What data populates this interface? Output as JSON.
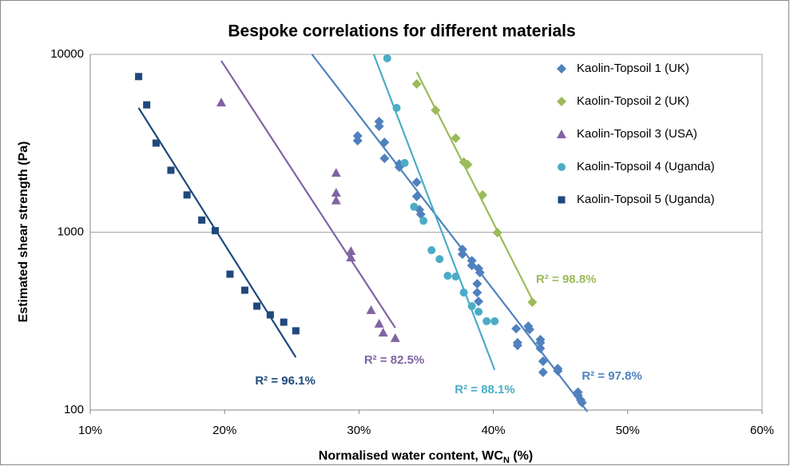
{
  "chart_data": {
    "type": "scatter",
    "title": "Bespoke correlations for different materials",
    "x_label": [
      "Normalised water content, WC",
      "N",
      " (%)"
    ],
    "y_label": "Estimated shear strength (Pa)",
    "xlim": [
      10,
      60
    ],
    "xticks": [
      {
        "value": 10,
        "label": "10%"
      },
      {
        "value": 20,
        "label": "20%"
      },
      {
        "value": 30,
        "label": "30%"
      },
      {
        "value": 40,
        "label": "40%"
      },
      {
        "value": 50,
        "label": "50%"
      },
      {
        "value": 60,
        "label": "60%"
      }
    ],
    "ylim": [
      100,
      10000
    ],
    "yticks": [
      100,
      1000,
      10000
    ],
    "y_log": true,
    "grid": true,
    "legend": "right",
    "series": [
      {
        "name": "Kaolin-Topsoil 1 (UK)",
        "color": "#4f81bd",
        "marker": "diamond",
        "annotation": "R² = 97.8%",
        "x": [
          29.9,
          29.9,
          31.5,
          31.5,
          31.9,
          31.9,
          33.0,
          33.0,
          34.3,
          34.3,
          34.5,
          34.6,
          37.7,
          37.7,
          38.4,
          38.4,
          38.9,
          39.0,
          38.8,
          38.8,
          38.9,
          41.7,
          41.8,
          41.8,
          42.6,
          42.7,
          43.5,
          43.5,
          43.5,
          43.7,
          43.7,
          44.8,
          44.8,
          46.3,
          46.3,
          46.5,
          46.6
        ],
        "values": [
          3480,
          3270,
          4190,
          3940,
          3200,
          2600,
          2420,
          2320,
          1910,
          1590,
          1340,
          1260,
          800,
          752,
          692,
          650,
          625,
          593,
          513,
          458,
          408,
          287,
          239,
          231,
          296,
          284,
          249,
          239,
          222,
          188,
          163,
          171,
          166,
          126,
          121,
          114,
          110
        ],
        "trend_x": [
          26.5,
          47.0
        ],
        "trend_y": [
          10000,
          98
        ]
      },
      {
        "name": "Kaolin-Topsoil 2 (UK)",
        "color": "#9bbb59",
        "marker": "diamond",
        "annotation": "R² = 98.8%",
        "x": [
          34.3,
          35.7,
          37.2,
          37.8,
          38.1,
          39.2,
          40.3,
          42.9
        ],
        "values": [
          6820,
          4850,
          3380,
          2480,
          2400,
          1620,
          995,
          404
        ],
        "trend_x": [
          34.3,
          43.0
        ],
        "trend_y": [
          7960,
          404
        ]
      },
      {
        "name": "Kaolin-Topsoil 3 (USA)",
        "color": "#8064a2",
        "marker": "triangle",
        "annotation": "R² = 82.5%",
        "x": [
          19.75,
          28.3,
          28.3,
          28.3,
          29.4,
          29.4,
          30.9,
          31.5,
          31.8,
          32.7
        ],
        "values": [
          5370,
          2160,
          1670,
          1510,
          784,
          722,
          365,
          306,
          273,
          254
        ],
        "trend_x": [
          19.75,
          32.7
        ],
        "trend_y": [
          9200,
          290
        ]
      },
      {
        "name": "Kaolin-Topsoil 4 (Uganda)",
        "color": "#4bacc6",
        "marker": "circle",
        "annotation": "R² = 88.1%",
        "x": [
          32.1,
          32.8,
          33.4,
          34.1,
          34.8,
          35.4,
          36.0,
          36.6,
          37.2,
          37.8,
          38.4,
          38.9,
          39.5,
          40.1
        ],
        "values": [
          9500,
          5000,
          2450,
          1390,
          1160,
          792,
          706,
          569,
          563,
          458,
          384,
          357,
          316,
          316
        ],
        "trend_x": [
          31.1,
          40.1
        ],
        "trend_y": [
          10000,
          168
        ]
      },
      {
        "name": "Kaolin-Topsoil 5 (Uganda)",
        "color": "#1f497d",
        "marker": "square",
        "annotation": "R² = 96.1%",
        "x": [
          13.6,
          14.2,
          14.9,
          16.0,
          17.2,
          18.3,
          19.3,
          20.4,
          21.5,
          22.4,
          23.4,
          24.4,
          25.3
        ],
        "values": [
          7500,
          5200,
          3170,
          2230,
          1620,
          1170,
          1020,
          581,
          472,
          384,
          343,
          312,
          279
        ],
        "trend_x": [
          13.6,
          25.3
        ],
        "trend_y": [
          5000,
          198
        ]
      }
    ]
  }
}
